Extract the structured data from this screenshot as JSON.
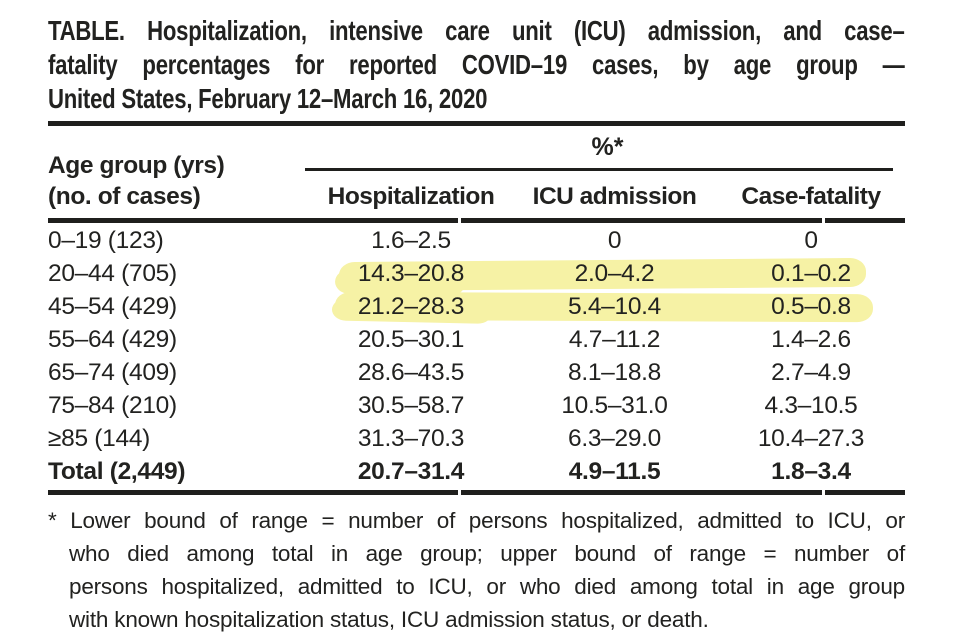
{
  "title": {
    "lines": [
      "TABLE. Hospitalization, intensive care unit (ICU) admission, and case–",
      "fatality percentages for reported COVID–19 cases, by age group —",
      "United States, February 12–March 16, 2020"
    ],
    "full_text": "TABLE. Hospitalization, intensive care unit (ICU) admission, and case–fatality percentages for reported COVID–19 cases, by age group — United States, February 12–March 16, 2020"
  },
  "table": {
    "spanner_header": "%*",
    "stub_header_line1": "Age group (yrs)",
    "stub_header_line2": "(no. of cases)",
    "columns": [
      "Hospitalization",
      "ICU admission",
      "Case-fatality"
    ],
    "rows": [
      {
        "age_group": "0–19 (123)",
        "hospitalization": "1.6–2.5",
        "icu_admission": "0",
        "case_fatality": "0",
        "highlighted": false
      },
      {
        "age_group": "20–44 (705)",
        "hospitalization": "14.3–20.8",
        "icu_admission": "2.0–4.2",
        "case_fatality": "0.1–0.2",
        "highlighted": true
      },
      {
        "age_group": "45–54 (429)",
        "hospitalization": "21.2–28.3",
        "icu_admission": "5.4–10.4",
        "case_fatality": "0.5–0.8",
        "highlighted": true
      },
      {
        "age_group": "55–64 (429)",
        "hospitalization": "20.5–30.1",
        "icu_admission": "4.7–11.2",
        "case_fatality": "1.4–2.6",
        "highlighted": false
      },
      {
        "age_group": "65–74 (409)",
        "hospitalization": "28.6–43.5",
        "icu_admission": "8.1–18.8",
        "case_fatality": "2.7–4.9",
        "highlighted": false
      },
      {
        "age_group": "75–84 (210)",
        "hospitalization": "30.5–58.7",
        "icu_admission": "10.5–31.0",
        "case_fatality": "4.3–10.5",
        "highlighted": false
      },
      {
        "age_group": "≥85 (144)",
        "hospitalization": "31.3–70.3",
        "icu_admission": "6.3–29.0",
        "case_fatality": "10.4–27.3",
        "highlighted": false
      }
    ],
    "total_row": {
      "age_group": "Total (2,449)",
      "hospitalization": "20.7–31.4",
      "icu_admission": "4.9–11.5",
      "case_fatality": "1.8–3.4"
    }
  },
  "footnote": {
    "lines": [
      "* Lower bound of range = number of persons hospitalized, admitted to ICU, or",
      "who died among total in age group; upper bound of range = number of",
      "persons hospitalized, admitted to ICU, or who died among total in age group",
      "with known hospitalization status, ICU admission status, or death."
    ],
    "full_text": "* Lower bound of range = number of persons hospitalized, admitted to ICU, or who died among total in age group; upper bound of range = number of persons hospitalized, admitted to ICU, or who died among total in age group with known hospitalization status, ICU admission status, or death."
  },
  "annotations": {
    "highlighter_color": "#f6f2a5",
    "highlighted_rows": [
      "20–44 (705)",
      "45–54 (429)"
    ]
  },
  "colors": {
    "text": "#222220",
    "rule": "#1f1f1d",
    "highlight": "#f6f2a5",
    "background": "#ffffff"
  }
}
